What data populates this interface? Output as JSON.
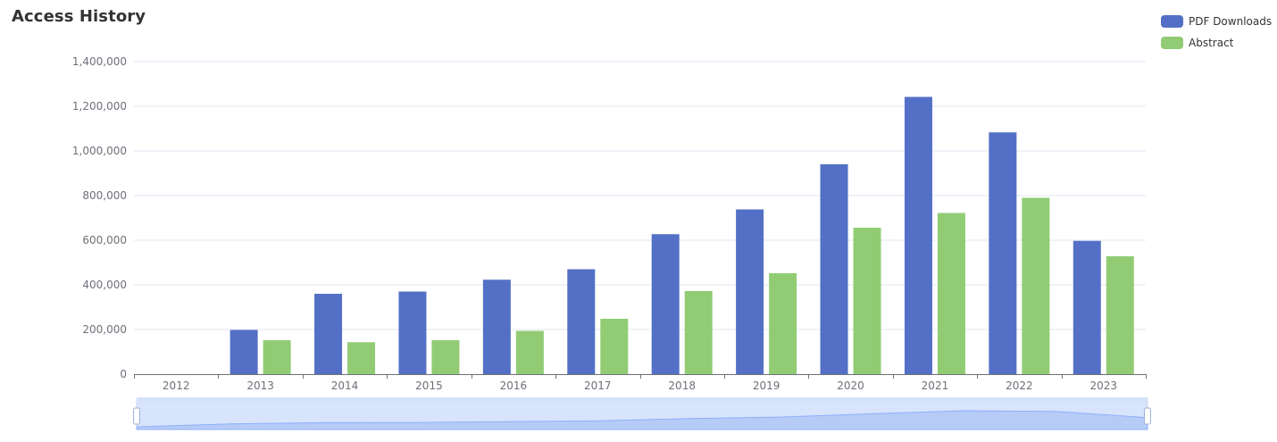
{
  "chart_data": {
    "type": "bar",
    "title": "Access History",
    "categories": [
      "2012",
      "2013",
      "2014",
      "2015",
      "2016",
      "2017",
      "2018",
      "2019",
      "2020",
      "2021",
      "2022",
      "2023"
    ],
    "series": [
      {
        "name": "PDF Downloads",
        "color": "#5470c6",
        "values": [
          0,
          198000,
          360000,
          370000,
          423000,
          470000,
          627000,
          738000,
          940000,
          1242000,
          1083000,
          597000
        ]
      },
      {
        "name": "Abstract",
        "color": "#91cc75",
        "values": [
          0,
          152000,
          143000,
          152000,
          194000,
          248000,
          372000,
          452000,
          656000,
          722000,
          790000,
          528000
        ]
      }
    ],
    "yticks": [
      "0",
      "200,000",
      "400,000",
      "600,000",
      "800,000",
      "1,000,000",
      "1,200,000",
      "1,400,000"
    ],
    "ylim": [
      0,
      1400000
    ],
    "grid": true,
    "legend_position": "top-right",
    "datazoom": {
      "enabled": true,
      "start_percent": 0,
      "end_percent": 100
    }
  }
}
